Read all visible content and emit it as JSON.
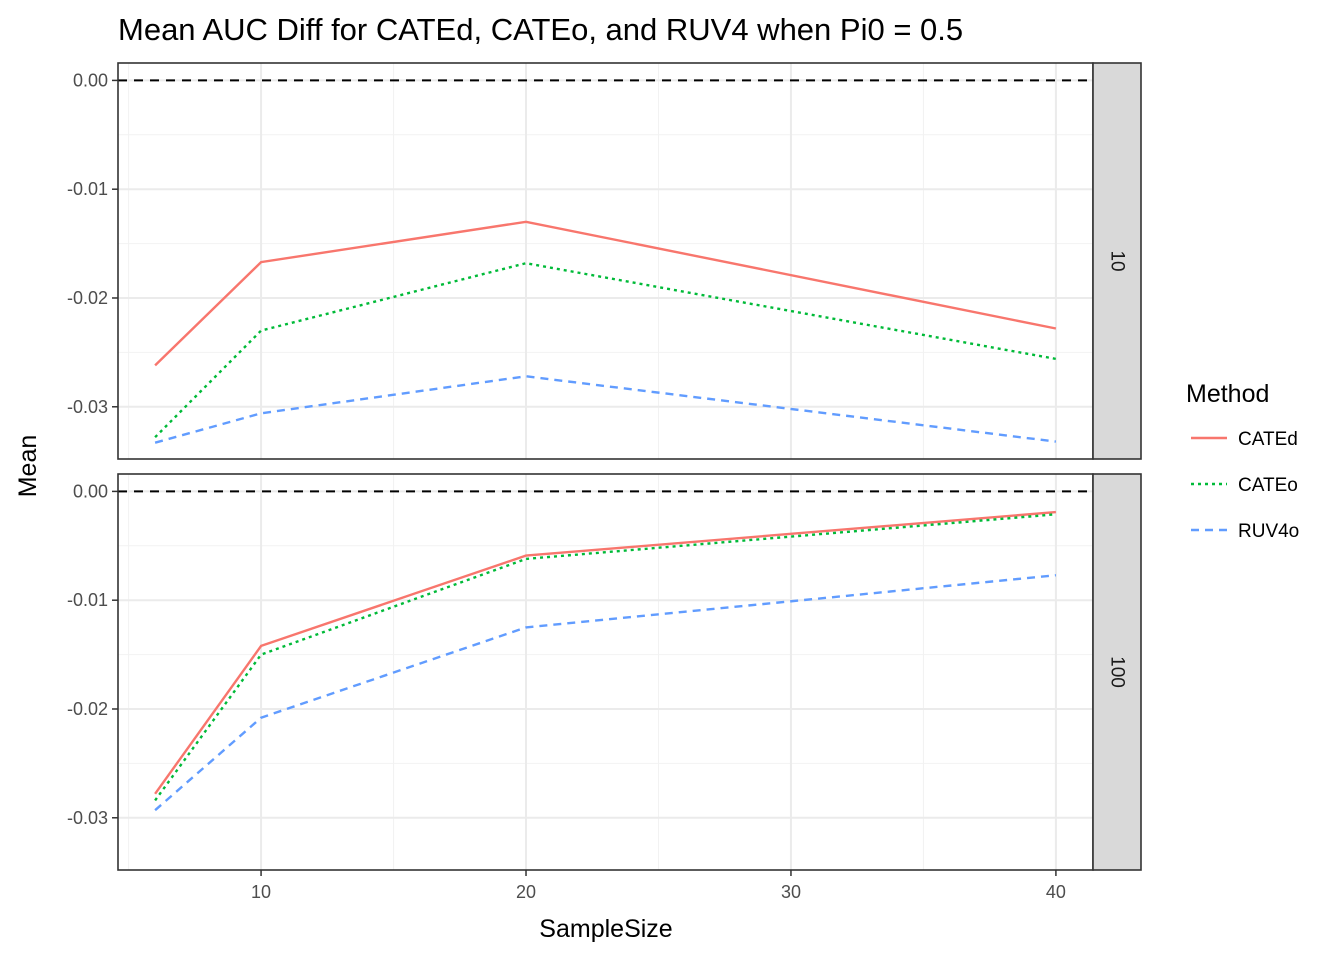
{
  "chart_data": {
    "type": "line",
    "title": "Mean AUC Diff for CATEd, CATEo, and RUV4 when Pi0 = 0.5",
    "xlabel": "SampleSize",
    "ylabel": "Mean",
    "xlim": [
      4.6,
      41.4
    ],
    "x_ticks": [
      10,
      20,
      30,
      40
    ],
    "x_tick_labels": [
      "10",
      "20",
      "30",
      "40"
    ],
    "y_ticks": [
      0,
      -0.01,
      -0.02,
      -0.03
    ],
    "y_tick_labels": [
      "0.00",
      "-0.01",
      "-0.02",
      "-0.03"
    ],
    "grid": true,
    "reference_line": {
      "y": 0,
      "style": "dashed",
      "color": "#000000"
    },
    "legend": {
      "title": "Method",
      "placement": "right",
      "entries": [
        {
          "label": "CATEd",
          "color": "#F8766D",
          "dash": "solid"
        },
        {
          "label": "CATEo",
          "color": "#00BA38",
          "dash": "dotted"
        },
        {
          "label": "RUV4o",
          "color": "#619CFF",
          "dash": "dashed"
        }
      ]
    },
    "facets": [
      {
        "strip_label": "10",
        "ylim": [
          -0.0348,
          0.0016
        ],
        "x": [
          6,
          10,
          20,
          40
        ],
        "series": [
          {
            "legend_index": 0,
            "values": [
              -0.0262,
              -0.0167,
              -0.013,
              -0.0228
            ]
          },
          {
            "legend_index": 1,
            "values": [
              -0.0328,
              -0.023,
              -0.0168,
              -0.0256
            ]
          },
          {
            "legend_index": 2,
            "values": [
              -0.0333,
              -0.0306,
              -0.0272,
              -0.0332
            ]
          }
        ]
      },
      {
        "strip_label": "100",
        "ylim": [
          -0.0348,
          0.0016
        ],
        "x": [
          6,
          10,
          20,
          40
        ],
        "series": [
          {
            "legend_index": 0,
            "values": [
              -0.0278,
              -0.0142,
              -0.0059,
              -0.0019
            ]
          },
          {
            "legend_index": 1,
            "values": [
              -0.0284,
              -0.015,
              -0.0062,
              -0.0021
            ]
          },
          {
            "legend_index": 2,
            "values": [
              -0.0293,
              -0.0208,
              -0.0125,
              -0.0077
            ]
          }
        ]
      }
    ]
  }
}
